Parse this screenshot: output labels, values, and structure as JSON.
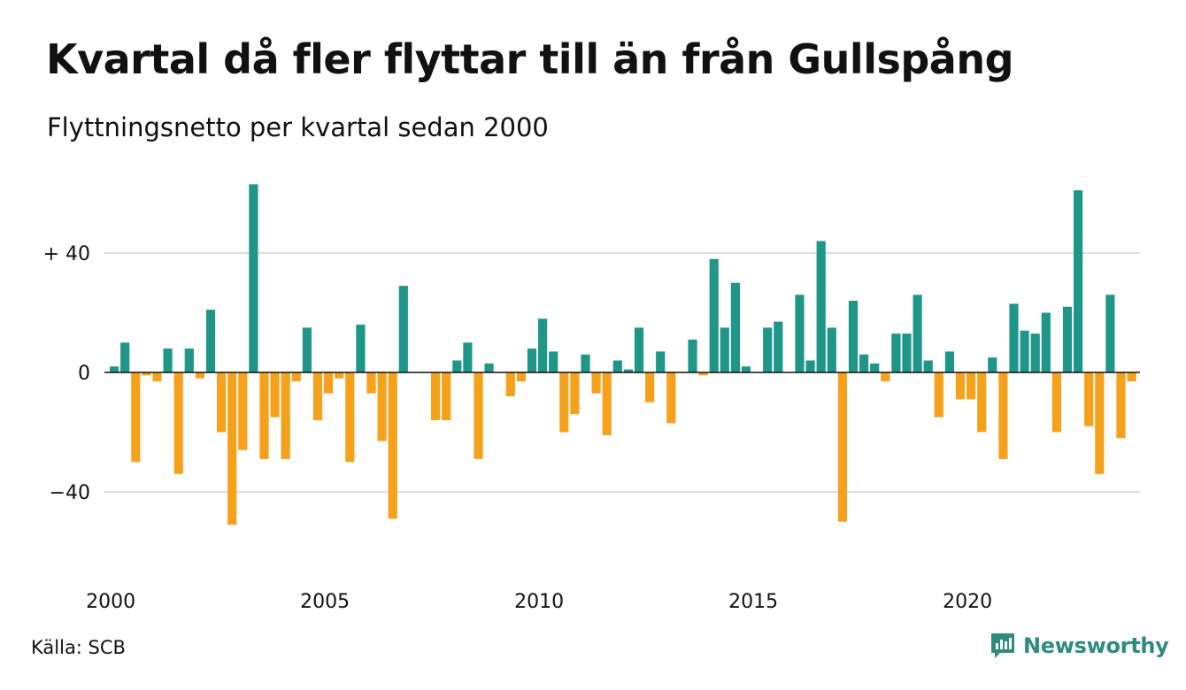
{
  "title": "Kvartal då fler flyttar till än från Gullspång",
  "subtitle": "Flyttningsnetto per kvartal sedan 2000",
  "source": "Källa: SCB",
  "brand": {
    "name": "Newsworthy",
    "icon": "newsworthy-logo-icon"
  },
  "colors": {
    "positive": "#1f9688",
    "negative": "#f5a11c",
    "grid": "#dcdce6",
    "zero": "#111111"
  },
  "chart_data": {
    "type": "bar",
    "xlabel": "",
    "ylabel": "",
    "grid": true,
    "ylim": [
      -55,
      65
    ],
    "y_ticks": [
      {
        "value": 40,
        "label": "+ 40"
      },
      {
        "value": 0,
        "label": "0"
      },
      {
        "value": -40,
        "label": "−40"
      }
    ],
    "x_ticks": [
      "2000",
      "2005",
      "2010",
      "2015",
      "2020"
    ],
    "start_year": 2000,
    "values": [
      2,
      10,
      -30,
      -1,
      -3,
      8,
      -34,
      8,
      -2,
      21,
      -20,
      -51,
      -26,
      63,
      -29,
      -15,
      -29,
      -3,
      15,
      -16,
      -7,
      -2,
      -30,
      16,
      -7,
      -23,
      -49,
      29,
      0,
      0,
      -16,
      -16,
      4,
      10,
      -29,
      3,
      0,
      -8,
      -3,
      8,
      18,
      7,
      -20,
      -14,
      6,
      -7,
      -21,
      4,
      1,
      15,
      -10,
      7,
      -17,
      0,
      11,
      -1,
      38,
      15,
      30,
      2,
      0,
      15,
      17,
      0,
      26,
      4,
      44,
      15,
      -50,
      24,
      6,
      3,
      -3,
      13,
      13,
      26,
      4,
      -15,
      7,
      -9,
      -9,
      -20,
      5,
      -29,
      23,
      14,
      13,
      20,
      -20,
      22,
      61,
      -18,
      -34,
      26,
      -22,
      -3
    ]
  }
}
